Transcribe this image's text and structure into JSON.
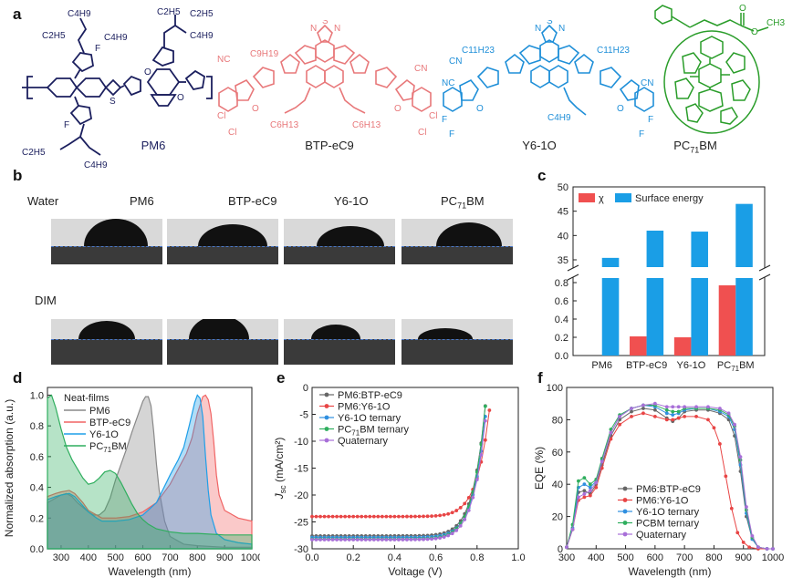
{
  "panel_labels": [
    "a",
    "b",
    "c",
    "d",
    "e",
    "f"
  ],
  "molecules": [
    {
      "name": "PM6",
      "color": "#1b1f5e",
      "groups": [
        "C4H9",
        "C2H5",
        "C2H5",
        "C4H9",
        "C2H5",
        "C4H9",
        "F",
        "F",
        "S",
        "O",
        "O",
        "C2H5",
        "C4H9"
      ]
    },
    {
      "name": "BTP-eC9",
      "color": "#e8787a",
      "groups": [
        "N",
        "S",
        "N",
        "C9H19",
        "NC",
        "CN",
        "C6H13",
        "C6H13",
        "Cl",
        "Cl",
        "O",
        "O",
        "Cl",
        "Cl"
      ]
    },
    {
      "name": "Y6-1O",
      "color": "#1f8fd8",
      "groups": [
        "N",
        "S",
        "N",
        "C11H23",
        "C11H23",
        "NC",
        "CN",
        "F",
        "F",
        "O",
        "O",
        "C4H9",
        "F",
        "F",
        "CN"
      ]
    },
    {
      "name": "PC71BM",
      "name_sub": "71",
      "color": "#2a9d2a",
      "groups": [
        "O",
        "O",
        "CH3"
      ]
    }
  ],
  "panel_b": {
    "rows": [
      "Water",
      "DIM"
    ],
    "columns": [
      "PM6",
      "BTP-eC9",
      "Y6-1O",
      "PC71BM"
    ],
    "column_subs": [
      "",
      "",
      "",
      "71"
    ]
  },
  "chart_data": [
    {
      "panel": "c",
      "type": "bar",
      "categories": [
        "PM6",
        "BTP-eC9",
        "Y6-1O",
        "PC71BM"
      ],
      "series": [
        {
          "name": "χ",
          "color": "#f05050",
          "values": [
            null,
            0.21,
            0.2,
            0.77
          ]
        },
        {
          "name": "Surface energy",
          "color": "#1a9ee6",
          "values": [
            35.4,
            41.0,
            40.8,
            46.5
          ]
        }
      ],
      "axis_break": true,
      "y_lower_ticks": [
        "0.0",
        "0.2",
        "0.4",
        "0.6",
        "0.8"
      ],
      "y_upper_ticks": [
        "35",
        "40",
        "45",
        "50"
      ],
      "ylim_lower": [
        0,
        0.85
      ],
      "ylim_upper": [
        33.5,
        50
      ],
      "legend_position": "top-left"
    },
    {
      "panel": "d",
      "type": "area",
      "xlabel": "Wavelength (nm)",
      "ylabel": "Normalized absorption (a.u.)",
      "xlim": [
        250,
        1000
      ],
      "ylim": [
        0,
        1.05
      ],
      "x_ticks": [
        "300",
        "400",
        "500",
        "600",
        "700",
        "800",
        "900",
        "1000"
      ],
      "y_ticks": [
        "0.0",
        "0.2",
        "0.4",
        "0.6",
        "0.8",
        "1.0"
      ],
      "legend_title": "Neat-films",
      "series": [
        {
          "name": "PM6",
          "color": "#888888",
          "x": [
            250,
            280,
            300,
            320,
            340,
            360,
            380,
            400,
            420,
            440,
            460,
            480,
            500,
            520,
            540,
            560,
            580,
            600,
            610,
            620,
            630,
            640,
            650,
            660,
            680,
            700,
            750,
            800,
            900,
            1000
          ],
          "y": [
            0.3,
            0.33,
            0.35,
            0.36,
            0.34,
            0.3,
            0.27,
            0.24,
            0.22,
            0.22,
            0.25,
            0.33,
            0.45,
            0.55,
            0.65,
            0.76,
            0.86,
            0.96,
            0.99,
            0.99,
            0.93,
            0.76,
            0.55,
            0.38,
            0.18,
            0.08,
            0.03,
            0.02,
            0.01,
            0.01
          ]
        },
        {
          "name": "BTP-eC9",
          "color": "#f06464",
          "x": [
            250,
            280,
            300,
            330,
            350,
            380,
            400,
            430,
            450,
            500,
            550,
            600,
            650,
            700,
            730,
            760,
            780,
            800,
            820,
            830,
            840,
            850,
            860,
            870,
            880,
            900,
            950,
            1000
          ],
          "y": [
            0.34,
            0.36,
            0.37,
            0.38,
            0.36,
            0.3,
            0.25,
            0.22,
            0.2,
            0.2,
            0.21,
            0.24,
            0.3,
            0.42,
            0.52,
            0.62,
            0.72,
            0.88,
            0.99,
            1.0,
            0.97,
            0.88,
            0.7,
            0.48,
            0.35,
            0.25,
            0.2,
            0.18
          ]
        },
        {
          "name": "Y6-1O",
          "color": "#1f9fe8",
          "x": [
            250,
            280,
            300,
            330,
            350,
            380,
            400,
            430,
            450,
            500,
            550,
            600,
            650,
            700,
            730,
            750,
            770,
            790,
            800,
            810,
            820,
            830,
            840,
            850,
            870,
            900,
            950,
            1000
          ],
          "y": [
            0.32,
            0.34,
            0.35,
            0.36,
            0.34,
            0.28,
            0.24,
            0.2,
            0.18,
            0.18,
            0.19,
            0.22,
            0.3,
            0.48,
            0.58,
            0.66,
            0.8,
            0.95,
            1.0,
            0.98,
            0.86,
            0.6,
            0.38,
            0.22,
            0.1,
            0.06,
            0.04,
            0.03
          ]
        },
        {
          "name": "PC71BM",
          "name_sub": "71",
          "color": "#2fae5e",
          "x": [
            250,
            265,
            280,
            300,
            320,
            340,
            360,
            380,
            400,
            420,
            440,
            460,
            480,
            500,
            520,
            540,
            560,
            580,
            600,
            620,
            650,
            700,
            750,
            800,
            900,
            1000
          ],
          "y": [
            0.98,
            1.0,
            0.92,
            0.78,
            0.66,
            0.58,
            0.52,
            0.46,
            0.42,
            0.43,
            0.46,
            0.5,
            0.51,
            0.49,
            0.43,
            0.36,
            0.29,
            0.23,
            0.19,
            0.16,
            0.13,
            0.11,
            0.1,
            0.1,
            0.09,
            0.09
          ]
        }
      ]
    },
    {
      "panel": "e",
      "type": "scatter",
      "xlabel": "Voltage (V)",
      "ylabel": "J_sc (mA/cm²)",
      "xlim": [
        0.0,
        1.0
      ],
      "ylim": [
        -30,
        0
      ],
      "x_ticks": [
        "0.0",
        "0.2",
        "0.4",
        "0.6",
        "0.8",
        "1.0"
      ],
      "y_ticks": [
        "0",
        "-5",
        "-10",
        "-15",
        "-20",
        "-25",
        "-30"
      ],
      "series": [
        {
          "name": "PM6:BTP-eC9",
          "color": "#666666",
          "jsc": -27.6,
          "voc": 0.848
        },
        {
          "name": "PM6:Y6-1O",
          "color": "#e84545",
          "jsc": -24.0,
          "voc": 0.872
        },
        {
          "name": "Y6-1O ternary",
          "color": "#2f8fe0",
          "jsc": -27.9,
          "voc": 0.853
        },
        {
          "name": "PC71BM  ternary",
          "name_sub_index": 2,
          "color": "#2fae5e",
          "jsc": -28.2,
          "voc": 0.848
        },
        {
          "name": "Quaternary",
          "color": "#a86fd8",
          "jsc": -28.3,
          "voc": 0.855
        }
      ]
    },
    {
      "panel": "f",
      "type": "scatter",
      "xlabel": "Wavelength (nm)",
      "ylabel": "EQE (%)",
      "xlim": [
        300,
        1000
      ],
      "ylim": [
        0,
        100
      ],
      "x_ticks": [
        "300",
        "400",
        "500",
        "600",
        "700",
        "800",
        "900",
        "1000"
      ],
      "y_ticks": [
        "0",
        "20",
        "40",
        "60",
        "80",
        "100"
      ],
      "series": [
        {
          "name": "PM6:BTP-eC9",
          "color": "#666666",
          "x": [
            300,
            320,
            340,
            360,
            380,
            400,
            420,
            450,
            480,
            520,
            560,
            600,
            640,
            660,
            680,
            700,
            740,
            780,
            820,
            850,
            870,
            890,
            910,
            930,
            950,
            980,
            1000
          ],
          "y": [
            1,
            12,
            35,
            36,
            34,
            40,
            52,
            70,
            80,
            85,
            87,
            86,
            81,
            79,
            81,
            85,
            86,
            86,
            84,
            80,
            70,
            48,
            20,
            6,
            1,
            0,
            0
          ]
        },
        {
          "name": "PM6:Y6-1O",
          "color": "#e84545",
          "x": [
            300,
            320,
            340,
            360,
            380,
            400,
            420,
            450,
            480,
            520,
            560,
            600,
            640,
            660,
            680,
            700,
            740,
            780,
            800,
            820,
            840,
            860,
            880,
            900,
            920,
            950,
            1000
          ],
          "y": [
            1,
            12,
            30,
            32,
            33,
            38,
            50,
            68,
            77,
            82,
            84,
            82,
            80,
            80,
            81,
            82,
            82,
            80,
            75,
            65,
            45,
            25,
            10,
            4,
            1,
            0,
            0
          ]
        },
        {
          "name": "Y6-1O  ternary",
          "color": "#2f8fe0",
          "x": [
            300,
            320,
            340,
            360,
            380,
            400,
            420,
            450,
            480,
            520,
            560,
            600,
            640,
            660,
            680,
            700,
            740,
            780,
            820,
            850,
            870,
            890,
            910,
            930,
            950,
            980,
            1000
          ],
          "y": [
            1,
            13,
            38,
            40,
            38,
            42,
            55,
            72,
            82,
            87,
            89,
            88,
            84,
            83,
            84,
            86,
            87,
            87,
            85,
            82,
            74,
            52,
            22,
            6,
            1,
            0,
            0
          ]
        },
        {
          "name": "PCBM  ternary",
          "color": "#2fae5e",
          "x": [
            300,
            320,
            340,
            360,
            380,
            400,
            420,
            450,
            480,
            520,
            560,
            600,
            640,
            660,
            680,
            700,
            740,
            780,
            820,
            850,
            870,
            890,
            910,
            930,
            950,
            980,
            1000
          ],
          "y": [
            1,
            15,
            42,
            44,
            40,
            43,
            56,
            74,
            83,
            87,
            89,
            89,
            86,
            85,
            85,
            87,
            87,
            87,
            86,
            83,
            76,
            55,
            24,
            7,
            1,
            0,
            0
          ]
        },
        {
          "name": "Quaternary",
          "color": "#a86fd8",
          "x": [
            300,
            320,
            340,
            360,
            380,
            400,
            420,
            450,
            480,
            520,
            560,
            600,
            640,
            660,
            680,
            700,
            740,
            780,
            820,
            850,
            870,
            890,
            910,
            930,
            950,
            980,
            1000
          ],
          "y": [
            1,
            12,
            32,
            34,
            36,
            41,
            54,
            72,
            82,
            87,
            89,
            90,
            88,
            88,
            88,
            88,
            88,
            88,
            87,
            84,
            77,
            57,
            26,
            8,
            1,
            0,
            0
          ]
        }
      ]
    }
  ]
}
